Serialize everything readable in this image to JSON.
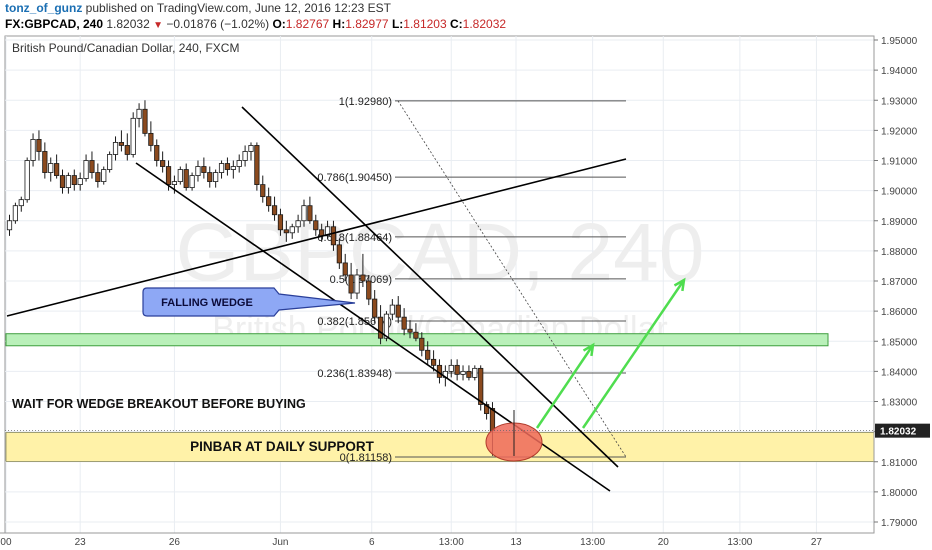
{
  "header": {
    "username": "tonz_of_gunz",
    "published_text": "published on TradingView.com, June 12, 2016 12:23 EST",
    "symbol": "FX:GBPCAD, 240",
    "last": "1.82032",
    "change": "−0.01876 (−1.02%)",
    "o_label": "O:",
    "o_value": "1.82767",
    "h_label": "H:",
    "h_value": "1.82977",
    "l_label": "L:",
    "l_value": "1.81203",
    "c_label": "C:",
    "c_value": "1.82032"
  },
  "chart_data": {
    "type": "candlestick",
    "title": "British Pound/Canadian Dollar, 240, FXCM",
    "watermark_symbol": "GBPCAD, 240",
    "watermark_name": "British Pound/Canadian Dollar",
    "ylim": [
      1.79,
      1.95
    ],
    "y_ticks": [
      "1.95000",
      "1.94000",
      "1.93000",
      "1.92000",
      "1.91000",
      "1.90000",
      "1.89000",
      "1.88000",
      "1.87000",
      "1.86000",
      "1.85000",
      "1.84000",
      "1.83000",
      "1.82000",
      "1.81000",
      "1.80000",
      "1.79000"
    ],
    "y_tick_values": [
      1.95,
      1.94,
      1.93,
      1.92,
      1.91,
      1.9,
      1.89,
      1.88,
      1.87,
      1.86,
      1.85,
      1.84,
      1.83,
      1.82,
      1.81,
      1.8,
      1.79
    ],
    "x_ticks": [
      "00",
      "23",
      "26",
      "Jun",
      "6",
      "13:00",
      "13",
      "13:00",
      "20",
      "13:00",
      "27"
    ],
    "x_tick_index": [
      -0.6,
      12,
      28,
      46,
      61.5,
      75,
      86,
      99,
      111,
      124,
      137
    ],
    "current_price_label": "1.82032",
    "current_price": 1.82032,
    "candles": [
      [
        1.887,
        1.892,
        1.885,
        1.89
      ],
      [
        1.89,
        1.896,
        1.889,
        1.895
      ],
      [
        1.895,
        1.898,
        1.893,
        1.897
      ],
      [
        1.897,
        1.911,
        1.896,
        1.91
      ],
      [
        1.91,
        1.919,
        1.908,
        1.917
      ],
      [
        1.917,
        1.92,
        1.91,
        1.913
      ],
      [
        1.913,
        1.916,
        1.904,
        1.906
      ],
      [
        1.906,
        1.911,
        1.903,
        1.909
      ],
      [
        1.909,
        1.912,
        1.904,
        1.905
      ],
      [
        1.905,
        1.907,
        1.899,
        1.901
      ],
      [
        1.901,
        1.906,
        1.899,
        1.905
      ],
      [
        1.905,
        1.907,
        1.9,
        1.902
      ],
      [
        1.902,
        1.906,
        1.9,
        1.904
      ],
      [
        1.904,
        1.912,
        1.903,
        1.91
      ],
      [
        1.91,
        1.913,
        1.904,
        1.906
      ],
      [
        1.906,
        1.909,
        1.901,
        1.903
      ],
      [
        1.903,
        1.908,
        1.902,
        1.907
      ],
      [
        1.907,
        1.913,
        1.906,
        1.912
      ],
      [
        1.912,
        1.918,
        1.91,
        1.916
      ],
      [
        1.916,
        1.92,
        1.913,
        1.915
      ],
      [
        1.915,
        1.919,
        1.91,
        1.912
      ],
      [
        1.912,
        1.926,
        1.911,
        1.924
      ],
      [
        1.924,
        1.929,
        1.921,
        1.927
      ],
      [
        1.927,
        1.93,
        1.918,
        1.919
      ],
      [
        1.919,
        1.923,
        1.913,
        1.915
      ],
      [
        1.915,
        1.917,
        1.908,
        1.91
      ],
      [
        1.91,
        1.913,
        1.906,
        1.908
      ],
      [
        1.908,
        1.91,
        1.9,
        1.902
      ],
      [
        1.902,
        1.905,
        1.899,
        1.903
      ],
      [
        1.903,
        1.908,
        1.902,
        1.907
      ],
      [
        1.907,
        1.909,
        1.9,
        1.901
      ],
      [
        1.901,
        1.906,
        1.9,
        1.905
      ],
      [
        1.905,
        1.91,
        1.903,
        1.908
      ],
      [
        1.908,
        1.911,
        1.904,
        1.906
      ],
      [
        1.906,
        1.908,
        1.901,
        1.903
      ],
      [
        1.903,
        1.907,
        1.901,
        1.906
      ],
      [
        1.906,
        1.91,
        1.904,
        1.909
      ],
      [
        1.909,
        1.911,
        1.905,
        1.907
      ],
      [
        1.907,
        1.91,
        1.904,
        1.908
      ],
      [
        1.908,
        1.912,
        1.906,
        1.91
      ],
      [
        1.91,
        1.915,
        1.908,
        1.913
      ],
      [
        1.913,
        1.916,
        1.91,
        1.915
      ],
      [
        1.915,
        1.916,
        1.9,
        1.902
      ],
      [
        1.902,
        1.905,
        1.896,
        1.898
      ],
      [
        1.898,
        1.901,
        1.893,
        1.895
      ],
      [
        1.895,
        1.898,
        1.89,
        1.892
      ],
      [
        1.892,
        1.894,
        1.885,
        1.887
      ],
      [
        1.887,
        1.89,
        1.883,
        1.886
      ],
      [
        1.886,
        1.889,
        1.884,
        1.888
      ],
      [
        1.888,
        1.892,
        1.886,
        1.89
      ],
      [
        1.89,
        1.897,
        1.888,
        1.895
      ],
      [
        1.895,
        1.898,
        1.889,
        1.89
      ],
      [
        1.89,
        1.892,
        1.885,
        1.887
      ],
      [
        1.887,
        1.889,
        1.883,
        1.885
      ],
      [
        1.885,
        1.89,
        1.884,
        1.888
      ],
      [
        1.888,
        1.89,
        1.88,
        1.882
      ],
      [
        1.882,
        1.884,
        1.874,
        1.876
      ],
      [
        1.876,
        1.879,
        1.87,
        1.872
      ],
      [
        1.872,
        1.876,
        1.864,
        1.866
      ],
      [
        1.866,
        1.874,
        1.864,
        1.872
      ],
      [
        1.872,
        1.879,
        1.868,
        1.87
      ],
      [
        1.87,
        1.872,
        1.862,
        1.864
      ],
      [
        1.864,
        1.867,
        1.856,
        1.858
      ],
      [
        1.858,
        1.862,
        1.849,
        1.851
      ],
      [
        1.851,
        1.86,
        1.85,
        1.859
      ],
      [
        1.859,
        1.864,
        1.857,
        1.862
      ],
      [
        1.862,
        1.865,
        1.856,
        1.858
      ],
      [
        1.858,
        1.861,
        1.852,
        1.854
      ],
      [
        1.854,
        1.857,
        1.851,
        1.853
      ],
      [
        1.853,
        1.856,
        1.85,
        1.851
      ],
      [
        1.851,
        1.853,
        1.845,
        1.847
      ],
      [
        1.847,
        1.85,
        1.842,
        1.844
      ],
      [
        1.844,
        1.847,
        1.84,
        1.842
      ],
      [
        1.842,
        1.844,
        1.836,
        1.838
      ],
      [
        1.838,
        1.842,
        1.835,
        1.84
      ],
      [
        1.84,
        1.844,
        1.838,
        1.842
      ],
      [
        1.842,
        1.844,
        1.837,
        1.839
      ],
      [
        1.839,
        1.842,
        1.837,
        1.84
      ],
      [
        1.84,
        1.842,
        1.837,
        1.838
      ],
      [
        1.838,
        1.842,
        1.837,
        1.841
      ],
      [
        1.841,
        1.842,
        1.827,
        1.829
      ],
      [
        1.829,
        1.83,
        1.824,
        1.826
      ],
      [
        1.8277,
        1.8298,
        1.812,
        1.8203
      ]
    ]
  },
  "annotations": {
    "fib_levels": [
      {
        "label": "1(1.92980)",
        "value": 1.9298
      },
      {
        "label": "0.786(1.90450)",
        "value": 1.9045
      },
      {
        "label": "0.618(1.88464)",
        "value": 1.88464
      },
      {
        "label": "0.5(1.87069)",
        "value": 1.87069
      },
      {
        "label": "0.382(1.85674)",
        "value": 1.85674
      },
      {
        "label": "0.236(1.83948)",
        "value": 1.83948
      },
      {
        "label": "0(1.81158)",
        "value": 1.81158
      }
    ],
    "falling_wedge": "FALLING WEDGE",
    "wait_text": "WAIT FOR WEDGE BREAKOUT BEFORE BUYING",
    "pinbar_text": "PINBAR AT DAILY SUPPORT",
    "resistance_zone": [
      1.8485,
      1.8525
    ],
    "support_zone": [
      1.8101,
      1.8197
    ],
    "colors": {
      "up": "#ffffff",
      "down": "#8b4a1e",
      "outline": "#1a1a1a",
      "green_zone": "#b9f0b9",
      "yellow_zone": "#fff2a8",
      "arrow": "#4fdd4f",
      "circle": "#ee6a5a",
      "label_box": "#8ea8f5"
    }
  }
}
